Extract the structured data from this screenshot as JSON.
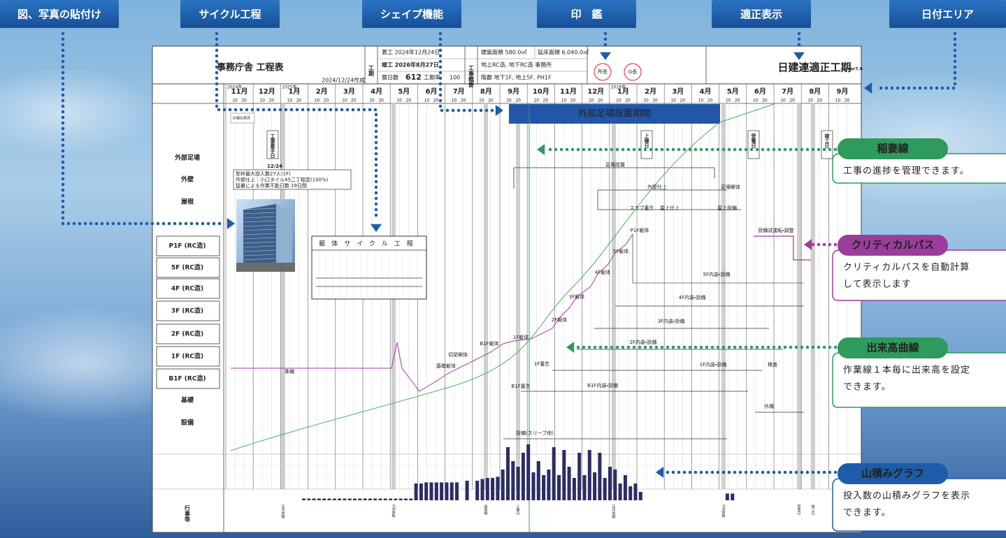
{
  "tabs": [
    "図、写真の貼付け",
    "サイクル工程",
    "シェイプ機能",
    "印　鑑",
    "適正表示",
    "日付エリア"
  ],
  "callouts": [
    {
      "title": "稲妻線",
      "lines": [
        "工事の進捗を管理できます。"
      ]
    },
    {
      "title": "クリティカルパス",
      "lines": [
        "クリティカルパスを自動計算",
        "して表示します"
      ]
    },
    {
      "title": "出来高曲線",
      "lines": [
        "作業線１本毎に出来高を設定",
        "できます。"
      ]
    },
    {
      "title": "山積みグラフ",
      "lines": [
        "投入数の山積みグラフを表示",
        "できます。"
      ]
    }
  ],
  "header": {
    "title": "事務庁舎 工程表",
    "created": "2024/12/24作成",
    "period": "工期",
    "start": "着工 2024年12月24日",
    "end": "竣工 2026年8月27日",
    "days_label": "暦日数",
    "days": "612",
    "rate_label": "工期率",
    "rate": "100",
    "summary_label": "工事概要",
    "area": "建築面積 580.0㎡",
    "floor_area": "延床面積 6,040.0㎡",
    "structure": "地上RC造, 地下RC造 事務所",
    "floors": "階数 地下1F, 地上5F, PH1F",
    "stamps": [
      "所長",
      "G長"
    ],
    "brand": "日建連適正工期",
    "version": "Ver7.0"
  },
  "timeline": {
    "years": [
      "2024年",
      "2025年",
      "2026年"
    ],
    "months": [
      "11月",
      "12月",
      "1月",
      "2月",
      "3月",
      "4月",
      "5月",
      "6月",
      "7月",
      "8月",
      "9月",
      "10月",
      "11月",
      "12月",
      "1月",
      "2月",
      "3月",
      "4月",
      "5月",
      "6月",
      "7月",
      "8月",
      "9月"
    ],
    "subticks": [
      "10",
      "20"
    ]
  },
  "rows": [
    "外部足場",
    "外壁",
    "屋根",
    "P1F (RC造)",
    "5F (RC造)",
    "4F (RC造)",
    "3F (RC造)",
    "2F (RC造)",
    "1F (RC造)",
    "B1F (RC造)",
    "基礎",
    "設備"
  ],
  "banner": "外部足場設置期間",
  "milestones": [
    "計画出来高",
    "工事着手日",
    "12/24",
    "上棟日",
    "受電日",
    "竣工日"
  ],
  "note": [
    "型枠最大投入数27人(1F)",
    "外壁仕上：小口タイル45二丁程度(100%)",
    "猛暑による作業不能日数 19日間"
  ],
  "cycle": {
    "title": "躯体サイクル工程"
  },
  "tasks": [
    "準備",
    "基礎躯体",
    "切梁解体",
    "B1F躯体",
    "1F躯体",
    "2F躯体",
    "3F躯体",
    "4F躯体",
    "5F躯体",
    "P1F躯体",
    "足場設置",
    "外壁仕上",
    "足場解体",
    "スラブ養生",
    "屋上仕上",
    "屋上設備",
    "設備試運転・調整",
    "5F内装・設備",
    "4F内装・設備",
    "3F内装・設備",
    "2F内装・設備",
    "1F内装・設備",
    "B1F内装・設備",
    "外構",
    "設備(スリーブ他)",
    "検査",
    "1F養生",
    "B1F養生"
  ],
  "events_label": "行事等",
  "events": [
    "正月休暇",
    "GW休暇",
    "盆休暇",
    "上棟日",
    "正月休暇",
    "GW休暇",
    "受電日",
    "竣工日"
  ],
  "histogram": {
    "color": "#2b2d63",
    "values": [
      3,
      3,
      3,
      3,
      3,
      3,
      3,
      3,
      3,
      3,
      3,
      3,
      3,
      3,
      3,
      3,
      3,
      3,
      3,
      3,
      3,
      3,
      30,
      30,
      32,
      32,
      32,
      32,
      32,
      32,
      32,
      0,
      35,
      0,
      35,
      38,
      40,
      40,
      42,
      55,
      95,
      70,
      60,
      85,
      100,
      50,
      70,
      45,
      55,
      95,
      45,
      90,
      60,
      40,
      85,
      45,
      90,
      50,
      85,
      40,
      60,
      55,
      30,
      45,
      25,
      30,
      15,
      0,
      0,
      0,
      0,
      0,
      0,
      0,
      0,
      0,
      0,
      0,
      0,
      0,
      0,
      0,
      0,
      12,
      12,
      0
    ]
  }
}
